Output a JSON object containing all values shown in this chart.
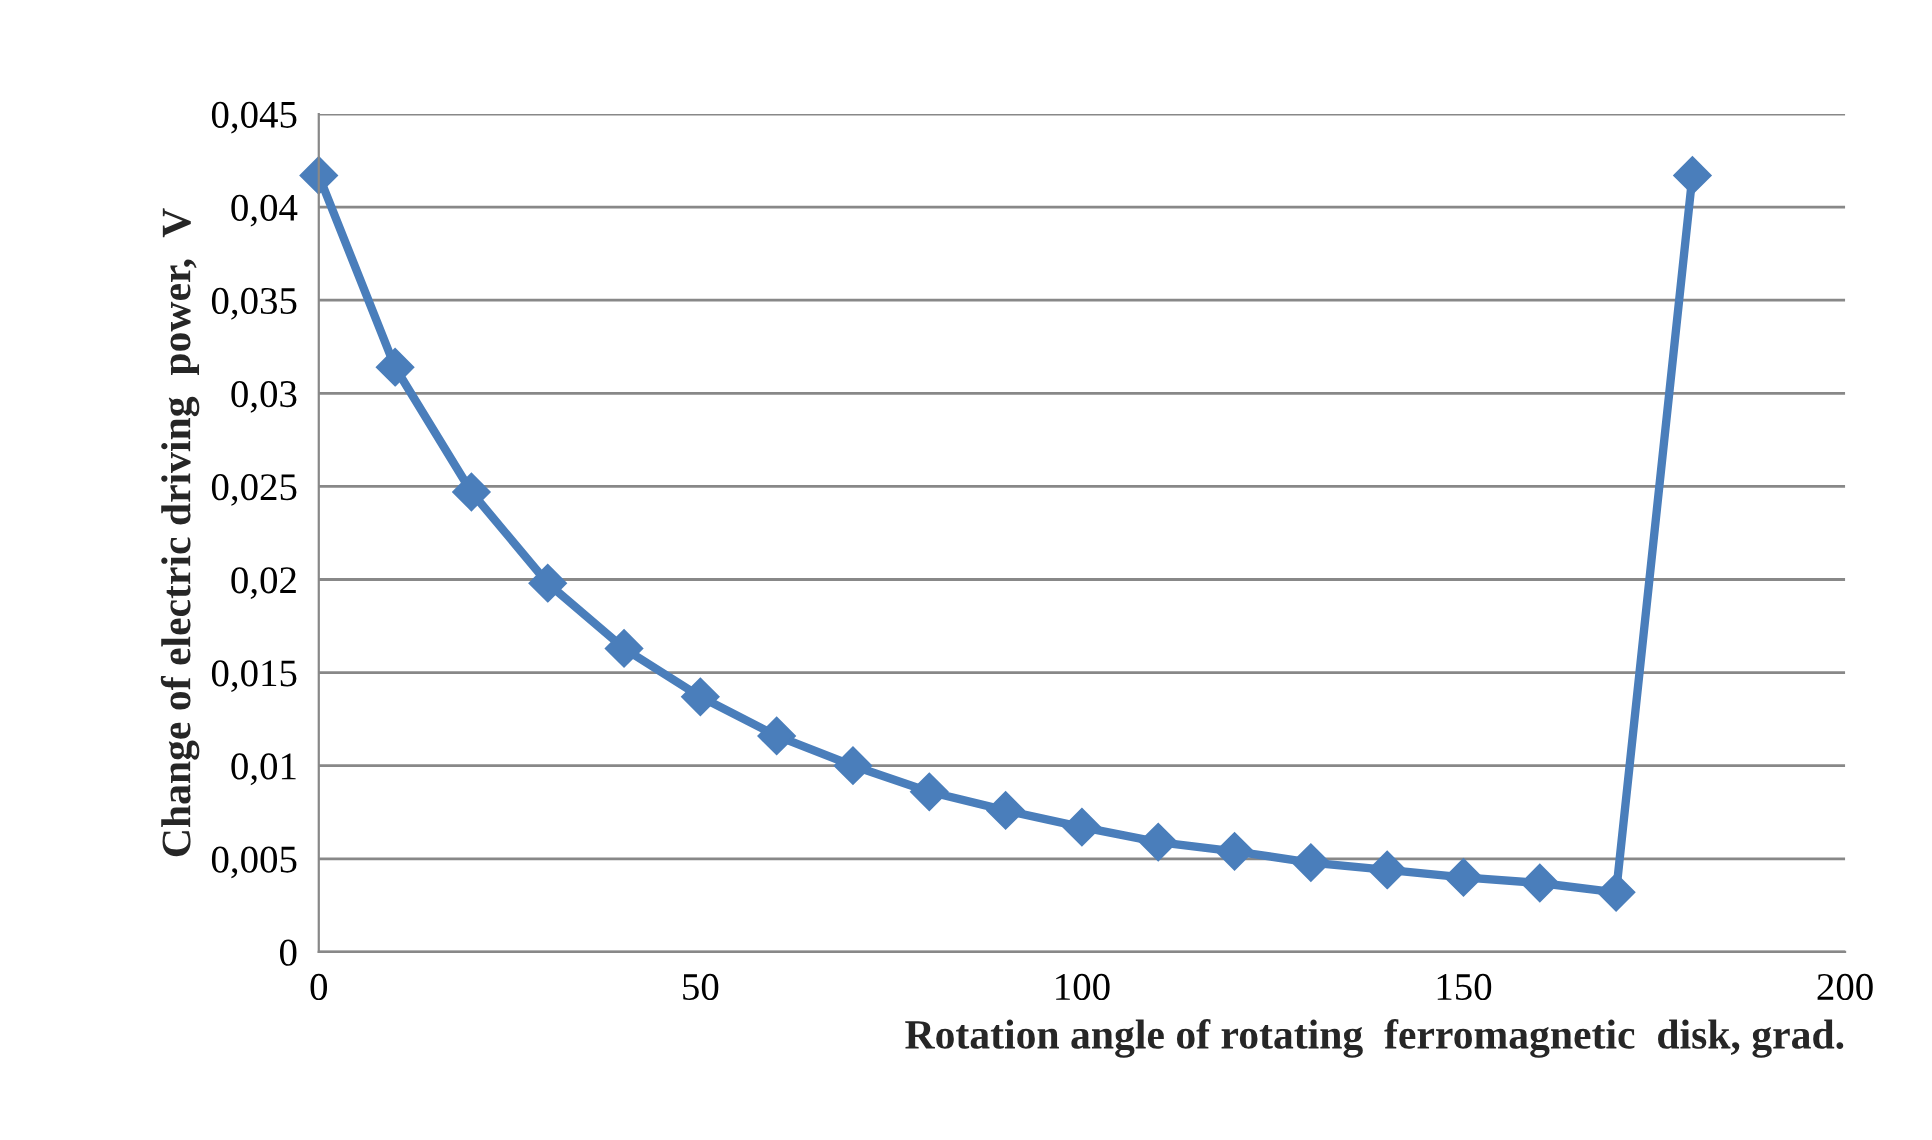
{
  "chart_data": {
    "type": "line",
    "xlabel": "Rotation angle of rotating  ferromagnetic  disk, grad.",
    "ylabel": "Change of electric driving  power,  V",
    "x": [
      0,
      10,
      20,
      30,
      40,
      50,
      60,
      70,
      80,
      90,
      100,
      110,
      120,
      130,
      140,
      150,
      160,
      170,
      180
    ],
    "series": [
      {
        "color": "#4a7ebb",
        "values": [
          0.0417,
          0.0314,
          0.0247,
          0.0198,
          0.0163,
          0.0137,
          0.0116,
          0.01,
          0.0086,
          0.0076,
          0.0067,
          0.0059,
          0.0054,
          0.0048,
          0.0044,
          0.004,
          0.0037,
          0.0032,
          0.0417
        ]
      }
    ],
    "xlim": [
      0,
      200
    ],
    "xticks": [
      0,
      50,
      100,
      150,
      200
    ],
    "ylim": [
      0,
      0.045
    ],
    "yticks": [
      0,
      {
        "value": 0.005,
        "label": "0,005"
      },
      {
        "value": 0.01,
        "label": "0,01"
      },
      {
        "value": 0.015,
        "label": "0,015"
      },
      {
        "value": 0.02,
        "label": "0,02"
      },
      {
        "value": 0.025,
        "label": "0,025"
      },
      {
        "value": 0.03,
        "label": "0,03"
      },
      {
        "value": 0.035,
        "label": "0,035"
      },
      {
        "value": 0.04,
        "label": "0,04"
      },
      {
        "value": 0.045,
        "label": "0,045"
      }
    ],
    "grid": "y",
    "marker": "diamond",
    "line_style": "solid"
  }
}
